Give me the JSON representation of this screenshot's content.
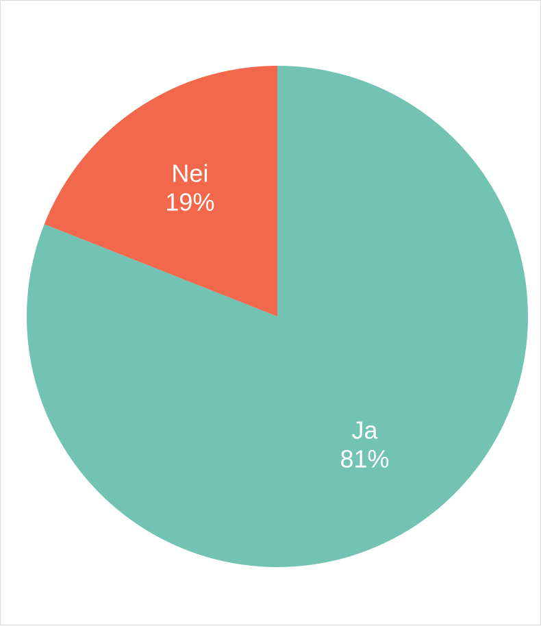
{
  "chart_data": {
    "type": "pie",
    "title": "",
    "categories": [
      "Ja",
      "Nei"
    ],
    "values": [
      81,
      19
    ],
    "labels": [
      "81%",
      "19%"
    ],
    "colors": [
      "#72C3B4",
      "#F1684C"
    ],
    "slice_text_color": "#ffffff",
    "legend": "none",
    "direction": "clockwise",
    "start": "top"
  }
}
